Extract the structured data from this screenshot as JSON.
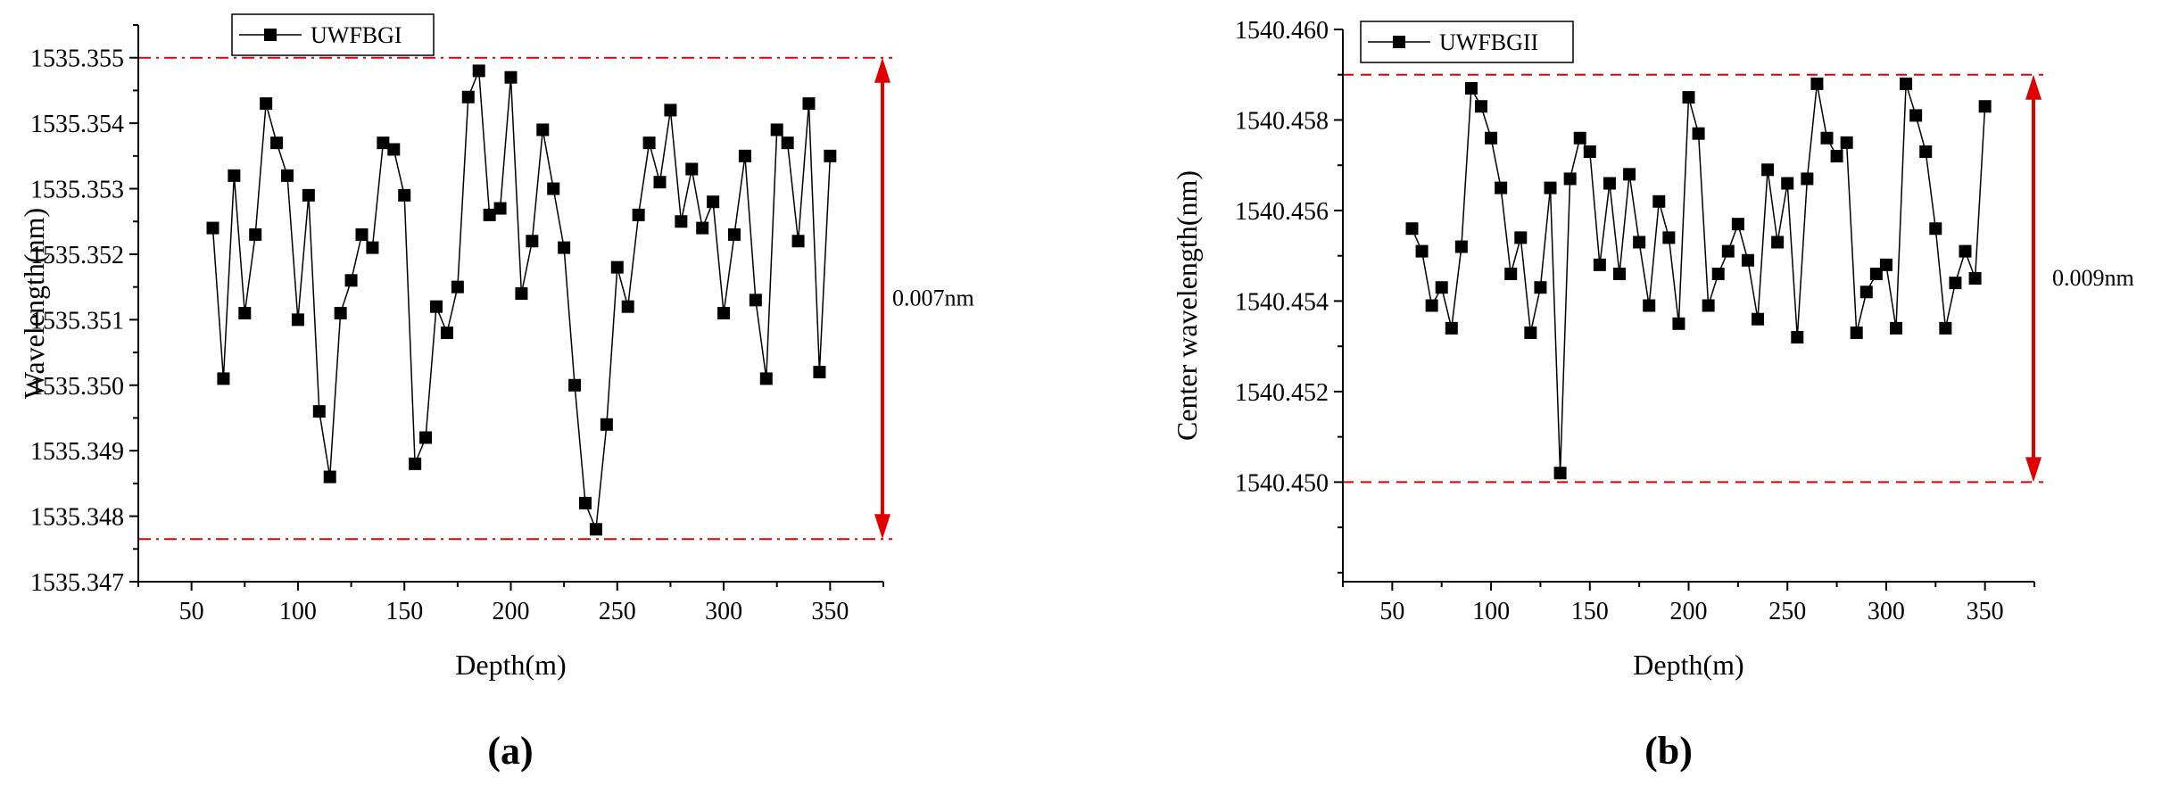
{
  "figure": {
    "panel_labels": [
      "(a)",
      "(b)"
    ]
  },
  "chart_data": [
    {
      "type": "line",
      "panel": "(a)",
      "title": "",
      "xlabel": "Depth(m)",
      "ylabel": "Wavelength(nm)",
      "xlim": [
        25,
        375
      ],
      "ylim": [
        1535.347,
        1535.3555
      ],
      "xticks": [
        50,
        100,
        150,
        200,
        250,
        300,
        350
      ],
      "xtick_labels": [
        "50",
        "100",
        "150",
        "200",
        "250",
        "300",
        "350"
      ],
      "yticks": [
        1535.347,
        1535.348,
        1535.349,
        1535.35,
        1535.351,
        1535.352,
        1535.353,
        1535.354,
        1535.355
      ],
      "ytick_labels": [
        "1535.347",
        "1535.348",
        "1535.349",
        "1535.350",
        "1535.351",
        "1535.352",
        "1535.353",
        "1535.354",
        "1535.355"
      ],
      "legend": {
        "label": "UWFBGI",
        "position": "top-left"
      },
      "series": [
        {
          "name": "UWFBGI",
          "color": "#000000",
          "x": [
            60,
            65,
            70,
            75,
            80,
            85,
            90,
            95,
            100,
            105,
            110,
            115,
            120,
            125,
            130,
            135,
            140,
            145,
            150,
            155,
            160,
            165,
            170,
            175,
            180,
            185,
            190,
            195,
            200,
            205,
            210,
            215,
            220,
            225,
            230,
            235,
            240,
            245,
            250,
            255,
            260,
            265,
            270,
            275,
            280,
            285,
            290,
            295,
            300,
            305,
            310,
            315,
            320,
            325,
            330,
            335,
            340,
            345,
            350
          ],
          "y": [
            1535.3524,
            1535.3501,
            1535.3532,
            1535.3511,
            1535.3523,
            1535.3543,
            1535.3537,
            1535.3532,
            1535.351,
            1535.3529,
            1535.3496,
            1535.3486,
            1535.3511,
            1535.3516,
            1535.3523,
            1535.3521,
            1535.3537,
            1535.3536,
            1535.3529,
            1535.3488,
            1535.3492,
            1535.3512,
            1535.3508,
            1535.3515,
            1535.3544,
            1535.3548,
            1535.3526,
            1535.3527,
            1535.3547,
            1535.3514,
            1535.3522,
            1535.3539,
            1535.353,
            1535.3521,
            1535.35,
            1535.3482,
            1535.3478,
            1535.3494,
            1535.3518,
            1535.3512,
            1535.3526,
            1535.3537,
            1535.3531,
            1535.3542,
            1535.3525,
            1535.3533,
            1535.3524,
            1535.3528,
            1535.3511,
            1535.3523,
            1535.3535,
            1535.3513,
            1535.3501,
            1535.3539,
            1535.3537,
            1535.3522,
            1535.3543,
            1535.3502,
            1535.3535
          ]
        }
      ],
      "reference_lines": [
        {
          "y": 1535.355,
          "style": "dash-dot",
          "color": "#e00000"
        },
        {
          "y": 1535.34765,
          "style": "dash-dot",
          "color": "#e00000"
        }
      ],
      "annotation": {
        "text": "0.007nm",
        "from": 1535.34765,
        "to": 1535.355,
        "x": 375,
        "color": "#e00000"
      }
    },
    {
      "type": "line",
      "panel": "(b)",
      "title": "",
      "xlabel": "Depth(m)",
      "ylabel": "Center wavelength(nm)",
      "xlim": [
        25,
        375
      ],
      "ylim": [
        1540.4478,
        1540.46
      ],
      "xticks": [
        50,
        100,
        150,
        200,
        250,
        300,
        350
      ],
      "xtick_labels": [
        "50",
        "100",
        "150",
        "200",
        "250",
        "300",
        "350"
      ],
      "yticks": [
        1540.45,
        1540.452,
        1540.454,
        1540.456,
        1540.458,
        1540.46
      ],
      "ytick_labels": [
        "1540.450",
        "1540.452",
        "1540.454",
        "1540.456",
        "1540.458",
        "1540.460"
      ],
      "legend": {
        "label": "UWFBGII",
        "position": "top-left"
      },
      "series": [
        {
          "name": "UWFBGII",
          "color": "#000000",
          "x": [
            60,
            65,
            70,
            75,
            80,
            85,
            90,
            95,
            100,
            105,
            110,
            115,
            120,
            125,
            130,
            135,
            140,
            145,
            150,
            155,
            160,
            165,
            170,
            175,
            180,
            185,
            190,
            195,
            200,
            205,
            210,
            215,
            220,
            225,
            230,
            235,
            240,
            245,
            250,
            255,
            260,
            265,
            270,
            275,
            280,
            285,
            290,
            295,
            300,
            305,
            310,
            315,
            320,
            325,
            330,
            335,
            340,
            345,
            350
          ],
          "y": [
            1540.4556,
            1540.4551,
            1540.4539,
            1540.4543,
            1540.4534,
            1540.4552,
            1540.4587,
            1540.4583,
            1540.4576,
            1540.4565,
            1540.4546,
            1540.4554,
            1540.4533,
            1540.4543,
            1540.4565,
            1540.4502,
            1540.4567,
            1540.4576,
            1540.4573,
            1540.4548,
            1540.4566,
            1540.4546,
            1540.4568,
            1540.4553,
            1540.4539,
            1540.4562,
            1540.4554,
            1540.4535,
            1540.4585,
            1540.4577,
            1540.4539,
            1540.4546,
            1540.4551,
            1540.4557,
            1540.4549,
            1540.4536,
            1540.4569,
            1540.4553,
            1540.4566,
            1540.4532,
            1540.4567,
            1540.4588,
            1540.4576,
            1540.4572,
            1540.4575,
            1540.4533,
            1540.4542,
            1540.4546,
            1540.4548,
            1540.4534,
            1540.4588,
            1540.4581,
            1540.4573,
            1540.4556,
            1540.4534,
            1540.4544,
            1540.4551,
            1540.4545,
            1540.4583
          ]
        }
      ],
      "reference_lines": [
        {
          "y": 1540.459,
          "style": "dashed",
          "color": "#e00000"
        },
        {
          "y": 1540.45,
          "style": "dashed",
          "color": "#e00000"
        }
      ],
      "annotation": {
        "text": "0.009nm",
        "from": 1540.45,
        "to": 1540.459,
        "x": 375,
        "color": "#e00000"
      }
    }
  ]
}
